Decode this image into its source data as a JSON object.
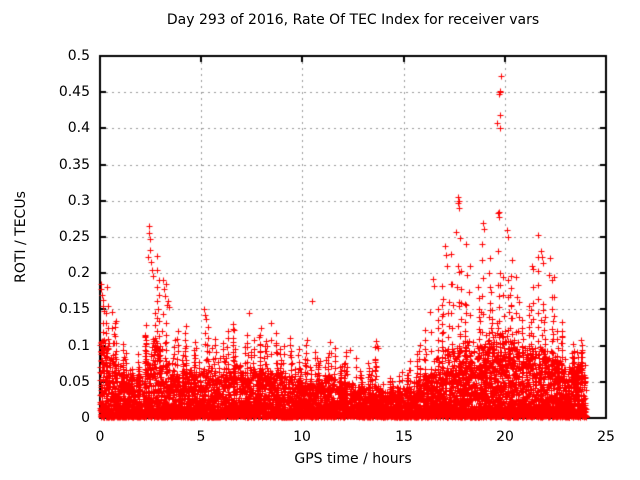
{
  "colors": {
    "points": "#ff0000",
    "grid": "#9a9a9a",
    "border": "#000000",
    "background": "#ffffff",
    "text": "#000000"
  },
  "chart_data": {
    "type": "scatter",
    "marker": "plus",
    "series_name": "ROTI",
    "series_color": "#ff0000",
    "title": "Day 293 of 2016, Rate Of TEC Index for receiver vars",
    "xlabel": "GPS time / hours",
    "ylabel": "ROTI / TECUs",
    "xlim": [
      0,
      25
    ],
    "ylim": [
      0,
      0.5
    ],
    "xticks": [
      0,
      5,
      10,
      15,
      20,
      25
    ],
    "yticks": [
      0,
      0.05,
      0.1,
      0.15,
      0.2,
      0.25,
      0.3,
      0.35,
      0.4,
      0.45,
      0.5
    ],
    "x_tick_labels": [
      "0",
      "5",
      "10",
      "15",
      "20",
      "25"
    ],
    "y_tick_labels": [
      "0",
      "0.05",
      "0.1",
      "0.15",
      "0.2",
      "0.25",
      "0.3",
      "0.35",
      "0.4",
      "0.45",
      "0.5"
    ],
    "grid": "dashed gray lines at major ticks, both axes",
    "legend": "none",
    "x_data_range": [
      0,
      24
    ],
    "density_bins": {
      "description": "Dense noisy scatter of + markers. Per 0.5-hour bin: [dense_band_top_TECU, max_spike_TECU, relative_density]. Points pile up near 0 and thin out toward band top; sparse vertical spike columns reach max_spike.",
      "start_hour": 0,
      "bin_hours": 0.5,
      "bins": [
        [
          0.105,
          0.185,
          1.25
        ],
        [
          0.085,
          0.15,
          1.1
        ],
        [
          0.062,
          0.105,
          1.0
        ],
        [
          0.055,
          0.092,
          1.0
        ],
        [
          0.075,
          0.13,
          1.0
        ],
        [
          0.11,
          0.23,
          1.1
        ],
        [
          0.072,
          0.19,
          1.0
        ],
        [
          0.06,
          0.125,
          1.0
        ],
        [
          0.065,
          0.13,
          1.0
        ],
        [
          0.058,
          0.108,
          1.0
        ],
        [
          0.065,
          0.14,
          1.0
        ],
        [
          0.058,
          0.112,
          1.0
        ],
        [
          0.062,
          0.125,
          1.0
        ],
        [
          0.07,
          0.135,
          1.0
        ],
        [
          0.062,
          0.118,
          1.0
        ],
        [
          0.065,
          0.128,
          1.0
        ],
        [
          0.062,
          0.135,
          1.0
        ],
        [
          0.065,
          0.122,
          1.0
        ],
        [
          0.058,
          0.115,
          1.0
        ],
        [
          0.052,
          0.098,
          1.0
        ],
        [
          0.05,
          0.112,
          1.0
        ],
        [
          0.048,
          0.095,
          0.95
        ],
        [
          0.055,
          0.108,
          1.0
        ],
        [
          0.05,
          0.098,
          0.95
        ],
        [
          0.05,
          0.094,
          0.95
        ],
        [
          0.045,
          0.085,
          0.9
        ],
        [
          0.04,
          0.078,
          0.9
        ],
        [
          0.045,
          0.1,
          0.9
        ],
        [
          0.034,
          0.058,
          0.85
        ],
        [
          0.034,
          0.064,
          0.85
        ],
        [
          0.04,
          0.08,
          0.9
        ],
        [
          0.05,
          0.105,
          1.0
        ],
        [
          0.06,
          0.15,
          1.05
        ],
        [
          0.08,
          0.19,
          1.1
        ],
        [
          0.09,
          0.235,
          1.15
        ],
        [
          0.1,
          0.255,
          1.2
        ],
        [
          0.1,
          0.248,
          1.2
        ],
        [
          0.1,
          0.25,
          1.2
        ],
        [
          0.108,
          0.228,
          1.2
        ],
        [
          0.118,
          0.29,
          1.25
        ],
        [
          0.108,
          0.225,
          1.2
        ],
        [
          0.098,
          0.2,
          1.15
        ],
        [
          0.098,
          0.212,
          1.15
        ],
        [
          0.098,
          0.228,
          1.15
        ],
        [
          0.088,
          0.2,
          1.1
        ],
        [
          0.078,
          0.135,
          1.05
        ],
        [
          0.068,
          0.105,
          1.0
        ],
        [
          0.072,
          0.112,
          1.0
        ]
      ]
    },
    "outliers": [
      [
        0.05,
        0.185
      ],
      [
        0.07,
        0.178
      ],
      [
        0.1,
        0.17
      ],
      [
        0.13,
        0.163
      ],
      [
        0.17,
        0.155
      ],
      [
        0.22,
        0.148
      ],
      [
        2.38,
        0.222
      ],
      [
        2.42,
        0.265
      ],
      [
        2.44,
        0.256
      ],
      [
        2.46,
        0.247
      ],
      [
        2.49,
        0.232
      ],
      [
        2.52,
        0.215
      ],
      [
        2.56,
        0.205
      ],
      [
        2.6,
        0.196
      ],
      [
        3.12,
        0.19
      ],
      [
        3.16,
        0.178
      ],
      [
        3.2,
        0.168
      ],
      [
        3.36,
        0.162
      ],
      [
        3.4,
        0.154
      ],
      [
        5.15,
        0.15
      ],
      [
        5.18,
        0.142
      ],
      [
        7.35,
        0.145
      ],
      [
        10.46,
        0.162
      ],
      [
        12.35,
        0.094
      ],
      [
        13.62,
        0.106
      ],
      [
        13.68,
        0.1
      ],
      [
        13.73,
        0.096
      ],
      [
        16.45,
        0.192
      ],
      [
        16.52,
        0.183
      ],
      [
        17.05,
        0.238
      ],
      [
        17.1,
        0.225
      ],
      [
        17.15,
        0.21
      ],
      [
        17.6,
        0.257
      ],
      [
        17.68,
        0.297
      ],
      [
        17.71,
        0.305
      ],
      [
        17.73,
        0.3
      ],
      [
        17.76,
        0.29
      ],
      [
        18.92,
        0.27
      ],
      [
        18.95,
        0.261
      ],
      [
        19.63,
        0.407
      ],
      [
        19.7,
        0.285
      ],
      [
        19.72,
        0.447
      ],
      [
        19.73,
        0.277
      ],
      [
        19.75,
        0.452
      ],
      [
        19.76,
        0.419
      ],
      [
        19.77,
        0.4
      ],
      [
        19.78,
        0.45
      ],
      [
        19.81,
        0.473
      ],
      [
        20.12,
        0.26
      ],
      [
        20.15,
        0.25
      ],
      [
        21.35,
        0.21
      ],
      [
        21.65,
        0.253
      ],
      [
        21.8,
        0.23
      ],
      [
        21.85,
        0.222
      ],
      [
        21.88,
        0.214
      ],
      [
        22.25,
        0.221
      ],
      [
        22.2,
        0.198
      ],
      [
        22.32,
        0.19
      ]
    ]
  }
}
